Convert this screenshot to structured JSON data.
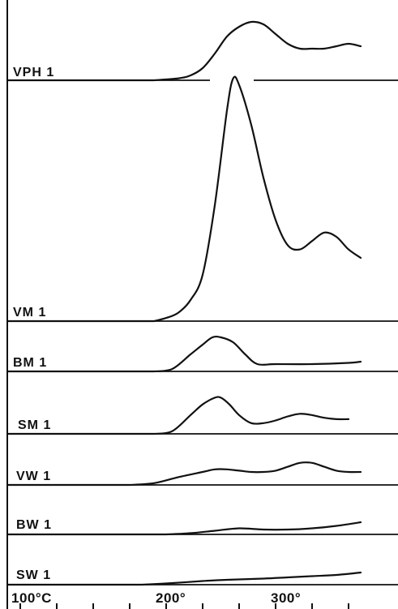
{
  "chart_data": {
    "type": "line",
    "xlim": [
      100,
      380
    ],
    "x_axis": {
      "tick_labels": [
        {
          "value": 100,
          "text": "100°C"
        },
        {
          "value": 200,
          "text": "200°"
        },
        {
          "value": 300,
          "text": "300°"
        }
      ],
      "minor_ticks": [
        100,
        130,
        160,
        190,
        220,
        250,
        280,
        310,
        340,
        370
      ]
    },
    "grid": false,
    "legend": "none",
    "line_color": "#111111",
    "series": [
      {
        "name": "VPH 1",
        "points": [
          [
            210,
            0
          ],
          [
            230,
            0.8
          ],
          [
            240,
            2
          ],
          [
            250,
            5
          ],
          [
            260,
            11
          ],
          [
            270,
            18
          ],
          [
            280,
            22
          ],
          [
            290,
            24
          ],
          [
            300,
            23
          ],
          [
            310,
            19
          ],
          [
            320,
            15
          ],
          [
            330,
            13
          ],
          [
            340,
            13
          ],
          [
            350,
            13
          ],
          [
            360,
            14
          ],
          [
            370,
            15
          ],
          [
            380,
            14
          ]
        ]
      },
      {
        "name": "VM 1",
        "points": [
          [
            210,
            0
          ],
          [
            220,
            1.5
          ],
          [
            230,
            4
          ],
          [
            240,
            10
          ],
          [
            250,
            22
          ],
          [
            260,
            55
          ],
          [
            270,
            100
          ],
          [
            275,
            115
          ],
          [
            280,
            112
          ],
          [
            290,
            93
          ],
          [
            300,
            68
          ],
          [
            310,
            48
          ],
          [
            320,
            36
          ],
          [
            330,
            34
          ],
          [
            340,
            38
          ],
          [
            350,
            42
          ],
          [
            360,
            40
          ],
          [
            370,
            34
          ],
          [
            380,
            30
          ]
        ]
      },
      {
        "name": "BM 1",
        "points": [
          [
            210,
            0
          ],
          [
            225,
            1
          ],
          [
            240,
            7
          ],
          [
            250,
            11
          ],
          [
            258,
            14
          ],
          [
            265,
            14
          ],
          [
            275,
            12
          ],
          [
            285,
            7
          ],
          [
            295,
            3
          ],
          [
            310,
            3
          ],
          [
            340,
            3
          ],
          [
            370,
            3.5
          ],
          [
            380,
            4
          ]
        ]
      },
      {
        "name": "SM 1",
        "points": [
          [
            210,
            0
          ],
          [
            225,
            1
          ],
          [
            240,
            7
          ],
          [
            250,
            11
          ],
          [
            260,
            13.5
          ],
          [
            265,
            13.5
          ],
          [
            272,
            11
          ],
          [
            280,
            7
          ],
          [
            290,
            4
          ],
          [
            300,
            4
          ],
          [
            310,
            5
          ],
          [
            320,
            6.5
          ],
          [
            330,
            7.5
          ],
          [
            340,
            7
          ],
          [
            350,
            6
          ],
          [
            360,
            5.5
          ],
          [
            370,
            5.5
          ]
        ]
      },
      {
        "name": "VW 1",
        "points": [
          [
            190,
            0
          ],
          [
            210,
            0.7
          ],
          [
            230,
            3
          ],
          [
            250,
            5
          ],
          [
            260,
            6
          ],
          [
            270,
            6
          ],
          [
            280,
            5.5
          ],
          [
            290,
            5
          ],
          [
            300,
            5
          ],
          [
            310,
            5.5
          ],
          [
            320,
            7
          ],
          [
            330,
            8.5
          ],
          [
            340,
            8.5
          ],
          [
            350,
            7
          ],
          [
            360,
            5.5
          ],
          [
            370,
            5
          ],
          [
            380,
            5
          ]
        ]
      },
      {
        "name": "BW 1",
        "points": [
          [
            220,
            0
          ],
          [
            240,
            0.5
          ],
          [
            260,
            1.5
          ],
          [
            280,
            2.5
          ],
          [
            300,
            2
          ],
          [
            320,
            2
          ],
          [
            340,
            2.5
          ],
          [
            360,
            3.5
          ],
          [
            380,
            5
          ]
        ]
      },
      {
        "name": "SW 1",
        "points": [
          [
            200,
            0
          ],
          [
            220,
            0.5
          ],
          [
            250,
            1.5
          ],
          [
            270,
            2
          ],
          [
            300,
            2.5
          ],
          [
            320,
            3
          ],
          [
            340,
            3.5
          ],
          [
            360,
            4
          ],
          [
            380,
            5
          ]
        ]
      }
    ]
  }
}
